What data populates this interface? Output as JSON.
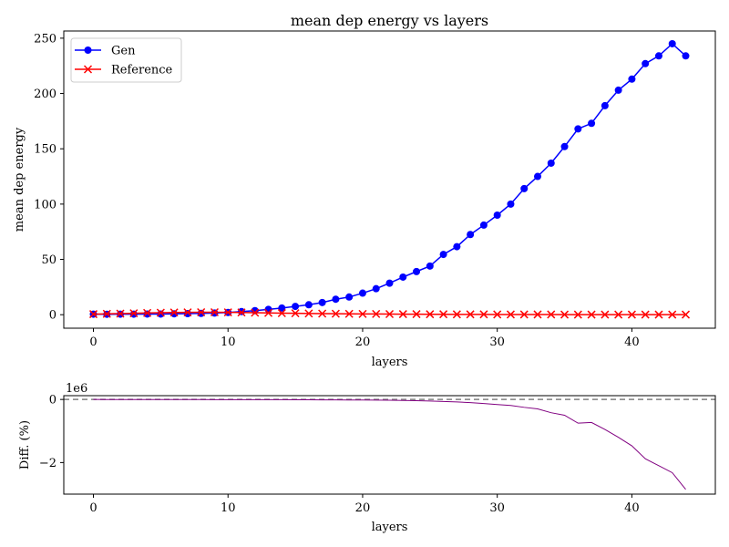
{
  "chart_data": [
    {
      "type": "line",
      "title": "mean dep energy vs layers",
      "xlabel": "layers",
      "ylabel": "mean dep energy",
      "xlim": [
        -2.2,
        46.2
      ],
      "ylim": [
        -12.2,
        256.5
      ],
      "xticks": [
        0,
        10,
        20,
        30,
        40
      ],
      "yticks": [
        0,
        50,
        100,
        150,
        200,
        250
      ],
      "legend_position": "top-left",
      "series": [
        {
          "name": "Gen",
          "color": "#0000ff",
          "marker": "circle",
          "x": [
            0,
            1,
            2,
            3,
            4,
            5,
            6,
            7,
            8,
            9,
            10,
            11,
            12,
            13,
            14,
            15,
            16,
            17,
            18,
            19,
            20,
            21,
            22,
            23,
            24,
            25,
            26,
            27,
            28,
            29,
            30,
            31,
            32,
            33,
            34,
            35,
            36,
            37,
            38,
            39,
            40,
            41,
            42,
            43,
            44
          ],
          "y": [
            0.5,
            0.4,
            0.5,
            0.5,
            0.6,
            0.6,
            0.8,
            1.0,
            1.2,
            1.5,
            2.0,
            2.8,
            3.7,
            4.8,
            6.0,
            7.5,
            9.0,
            11.0,
            14.0,
            16.0,
            19.5,
            23.5,
            28.5,
            34.0,
            39.0,
            44.0,
            54.5,
            61.5,
            72.5,
            81.0,
            90.0,
            100.0,
            114.0,
            125.0,
            137.0,
            152.0,
            168.0,
            173.0,
            189.0,
            203.0,
            213.0,
            227.0,
            234.0,
            245.0,
            234.0
          ]
        },
        {
          "name": "Reference",
          "color": "#ff0000",
          "marker": "x",
          "x": [
            0,
            1,
            2,
            3,
            4,
            5,
            6,
            7,
            8,
            9,
            10,
            11,
            12,
            13,
            14,
            15,
            16,
            17,
            18,
            19,
            20,
            21,
            22,
            23,
            24,
            25,
            26,
            27,
            28,
            29,
            30,
            31,
            32,
            33,
            34,
            35,
            36,
            37,
            38,
            39,
            40,
            41,
            42,
            43,
            44
          ],
          "y": [
            0.5,
            0.8,
            1.0,
            1.3,
            1.6,
            1.8,
            2.0,
            2.1,
            2.2,
            2.2,
            2.1,
            2.0,
            1.8,
            1.6,
            1.4,
            1.3,
            1.1,
            1.0,
            0.9,
            0.8,
            0.7,
            0.7,
            0.6,
            0.5,
            0.5,
            0.4,
            0.4,
            0.3,
            0.3,
            0.3,
            0.2,
            0.2,
            0.2,
            0.2,
            0.2,
            0.1,
            0.1,
            0.1,
            0.1,
            0.1,
            0.1,
            0.1,
            0.1,
            0.1,
            0.1
          ]
        }
      ]
    },
    {
      "type": "line",
      "xlabel": "layers",
      "ylabel": "Diff. (%)",
      "offset_text": "1e6",
      "xlim": [
        -2.2,
        46.2
      ],
      "ylim": [
        -3.0,
        0.12
      ],
      "xticks": [
        0,
        10,
        20,
        30,
        40
      ],
      "yticks": [
        0,
        -2
      ],
      "reference_line": {
        "y": 0,
        "style": "dashed",
        "color": "#808080"
      },
      "series": [
        {
          "color": "#800080",
          "x": [
            0,
            1,
            2,
            3,
            4,
            5,
            6,
            7,
            8,
            9,
            10,
            11,
            12,
            13,
            14,
            15,
            16,
            17,
            18,
            19,
            20,
            21,
            22,
            23,
            24,
            25,
            26,
            27,
            28,
            29,
            30,
            31,
            32,
            33,
            34,
            35,
            36,
            37,
            38,
            39,
            40,
            41,
            42,
            43,
            44
          ],
          "y": [
            0,
            -0.001,
            -0.003,
            -0.003,
            -0.002,
            -0.002,
            -0.003,
            -0.003,
            -0.004,
            -0.005,
            -0.005,
            -0.006,
            -0.006,
            -0.007,
            -0.008,
            -0.01,
            -0.011,
            -0.012,
            -0.014,
            -0.016,
            -0.018,
            -0.02,
            -0.025,
            -0.03,
            -0.04,
            -0.05,
            -0.065,
            -0.08,
            -0.1,
            -0.13,
            -0.16,
            -0.19,
            -0.25,
            -0.3,
            -0.42,
            -0.5,
            -0.75,
            -0.73,
            -0.95,
            -1.2,
            -1.47,
            -1.88,
            -2.1,
            -2.32,
            -2.85
          ]
        }
      ]
    }
  ]
}
